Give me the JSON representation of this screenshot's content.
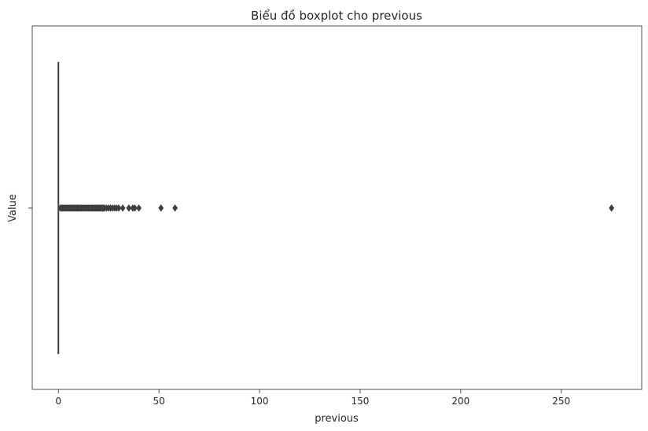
{
  "chart_data": {
    "type": "boxplot",
    "orientation": "horizontal",
    "title": "Biểu đồ boxplot cho previous",
    "xlabel": "previous",
    "ylabel": "Value",
    "xlim": [
      -13,
      290
    ],
    "xticks": [
      0,
      50,
      100,
      150,
      200,
      250
    ],
    "grid": false,
    "colors": {
      "box": "#3f3f3f",
      "outlier": "#3f3f3f",
      "axis": "#262626"
    },
    "box": {
      "q1": 0,
      "median": 0,
      "q3": 0,
      "whisker_low": 0,
      "whisker_high": 0
    },
    "outliers": [
      1,
      1.5,
      2,
      2.5,
      3,
      3.5,
      4,
      4.5,
      5,
      5.5,
      6,
      6.5,
      7,
      7.5,
      8,
      8.5,
      9,
      9.5,
      10,
      10.5,
      11,
      11.5,
      12,
      12.5,
      13,
      13.5,
      14,
      14.5,
      15,
      15.5,
      16,
      16.5,
      17,
      17.5,
      18,
      18.5,
      19,
      19.5,
      20,
      20.5,
      21,
      21.5,
      22,
      22.5,
      23,
      24,
      25,
      26,
      27,
      28,
      29,
      30,
      32,
      35,
      37,
      38,
      40,
      51,
      58,
      275
    ]
  }
}
